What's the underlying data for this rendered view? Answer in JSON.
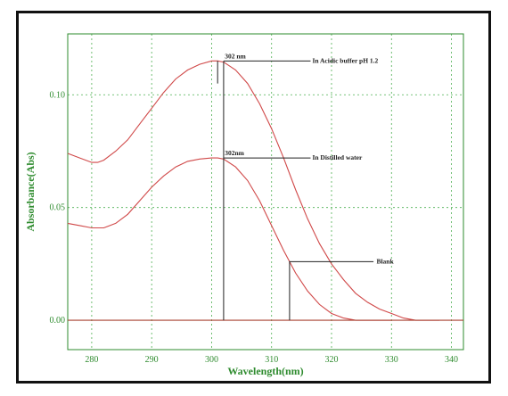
{
  "colors": {
    "frame": "#111111",
    "axis": "#2e8b2e",
    "grid": "#4caf50",
    "curve": "#d04848",
    "baseline": "#a84030",
    "annotation": "#222222"
  },
  "chart_data": {
    "type": "line",
    "title": "",
    "xlabel": "Wavelength(nm)",
    "ylabel": "Absorbance(Abs)",
    "xlim": [
      276,
      342
    ],
    "ylim": [
      -0.013,
      0.127
    ],
    "grid": true,
    "x_ticks": [
      280,
      290,
      300,
      310,
      320,
      330,
      340
    ],
    "x_tick_labels": [
      "280",
      "290",
      "300",
      "310",
      "320",
      "330",
      "340"
    ],
    "y_ticks": [
      0.0,
      0.05,
      0.1
    ],
    "y_tick_labels": [
      "0.00",
      "0.05",
      "0.10"
    ],
    "series": [
      {
        "x": [
          276,
          278,
          280,
          281,
          282,
          284,
          286,
          288,
          290,
          292,
          294,
          296,
          298,
          300,
          301,
          302,
          304,
          306,
          308,
          310,
          312,
          314,
          316,
          318,
          320,
          322,
          324,
          326,
          328,
          330,
          332,
          334,
          336,
          338
        ],
        "y": [
          0.074,
          0.072,
          0.07,
          0.07,
          0.071,
          0.075,
          0.08,
          0.087,
          0.094,
          0.101,
          0.107,
          0.111,
          0.1135,
          0.115,
          0.115,
          0.1145,
          0.111,
          0.105,
          0.096,
          0.085,
          0.072,
          0.058,
          0.045,
          0.034,
          0.025,
          0.018,
          0.012,
          0.008,
          0.005,
          0.003,
          0.001,
          0.0,
          0.0,
          0.0
        ]
      },
      {
        "x": [
          276,
          278,
          280,
          281,
          282,
          284,
          286,
          288,
          290,
          292,
          294,
          296,
          298,
          300,
          301,
          302,
          304,
          306,
          308,
          310,
          312,
          314,
          316,
          318,
          320,
          322,
          324,
          326,
          328,
          330
        ],
        "y": [
          0.043,
          0.042,
          0.041,
          0.041,
          0.041,
          0.043,
          0.047,
          0.053,
          0.059,
          0.064,
          0.068,
          0.0705,
          0.0715,
          0.072,
          0.072,
          0.0715,
          0.068,
          0.062,
          0.053,
          0.042,
          0.031,
          0.021,
          0.013,
          0.007,
          0.003,
          0.001,
          0.0,
          0.0,
          0.0,
          0.0
        ]
      },
      {
        "x": [
          276,
          342
        ],
        "y": [
          0.0,
          0.0
        ]
      }
    ],
    "annotations": [
      {
        "text": "302 nm",
        "x": 302,
        "y": 0.115
      },
      {
        "text": "In Acidic buffer pH 1.2",
        "x": 317,
        "y": 0.115
      },
      {
        "text": "302nm",
        "x": 302,
        "y": 0.072
      },
      {
        "text": "In Distilled water",
        "x": 317,
        "y": 0.072
      },
      {
        "text": "Blank",
        "x": 328,
        "y": 0.026
      }
    ]
  }
}
